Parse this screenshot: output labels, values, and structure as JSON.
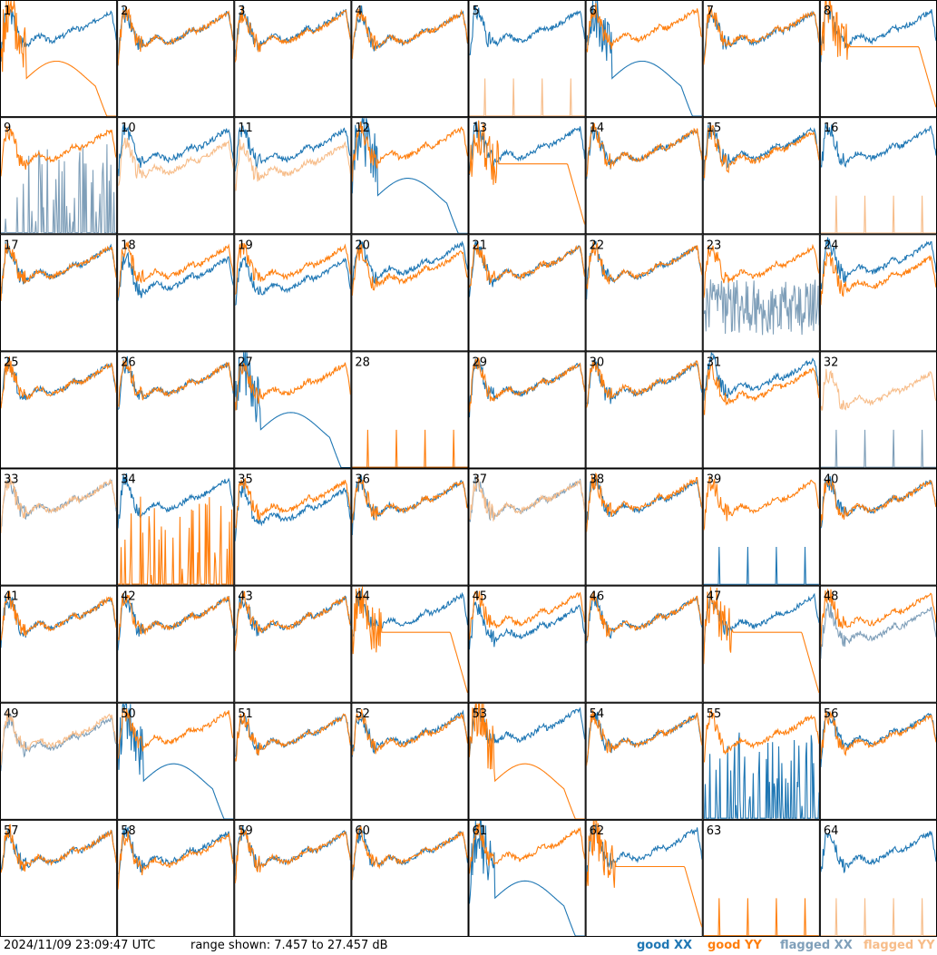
{
  "footer": {
    "timestamp": "2024/11/09 23:09:47 UTC",
    "range_text": "range shown: 7.457 to 27.457 dB",
    "legend": {
      "good_xx": "good XX",
      "good_yy": "good YY",
      "flagged_xx": "flagged XX",
      "flagged_yy": "flagged YY"
    }
  },
  "colors": {
    "good_xx": "#1f77b4",
    "good_yy": "#ff7f0e",
    "flagged_xx": "#7f9fb9",
    "flagged_yy": "#f7bd8a",
    "frame": "#000000"
  },
  "chart_data": {
    "type": "line",
    "layout": "8x8 grid of small multiples, tiles numbered 1-64",
    "ylim_db": [
      7.457,
      27.457
    ],
    "x_axis": "channel (unlabeled)",
    "grid": false,
    "legend_placement": "bottom-right",
    "x": [
      0.0,
      0.04,
      0.08,
      0.12,
      0.16,
      0.2,
      0.24,
      0.28,
      0.32,
      0.36,
      0.4,
      0.44,
      0.48,
      0.52,
      0.56,
      0.6,
      0.64,
      0.68,
      0.72,
      0.76,
      0.8,
      0.84,
      0.88,
      0.92,
      0.96,
      1.0
    ],
    "typical_shape_db": [
      17.5,
      24.8,
      25.3,
      23.1,
      20.6,
      19.9,
      19.7,
      20.5,
      21.2,
      21.0,
      20.4,
      20.2,
      20.5,
      20.9,
      21.3,
      22.1,
      22.6,
      22.1,
      22.5,
      23.0,
      23.4,
      24.0,
      24.6,
      25.0,
      25.4,
      20.5
    ],
    "tiles": [
      {
        "id": "1",
        "xx": "good",
        "yy": "good",
        "yy_mode": "dip_drop",
        "xx_offset": 0.3,
        "yy_offset": 0
      },
      {
        "id": "2",
        "xx": "good",
        "yy": "good",
        "xx_offset": 0,
        "yy_offset": 0
      },
      {
        "id": "3",
        "xx": "good",
        "yy": "good",
        "xx_offset": 0.3,
        "yy_offset": 0
      },
      {
        "id": "4",
        "xx": "good",
        "yy": "good",
        "xx_offset": 0,
        "yy_offset": 0
      },
      {
        "id": "5",
        "xx": "good",
        "yy": "flagged",
        "yy_mode": "dead_spike",
        "xx_offset": 0.3,
        "yy_offset": 0
      },
      {
        "id": "6",
        "xx": "good",
        "yy": "good",
        "xx_mode": "dip_drop",
        "xx_offset": 0,
        "yy_offset": 0.5
      },
      {
        "id": "7",
        "xx": "good",
        "yy": "good",
        "xx_offset": 0,
        "yy_offset": 0.2
      },
      {
        "id": "8",
        "xx": "good",
        "yy": "good",
        "yy_mode": "smooth_drop",
        "xx_offset": 0.3,
        "yy_offset": 0
      },
      {
        "id": "9",
        "xx": "flagged",
        "yy": "good",
        "xx_mode": "spiky_bursts",
        "xx_offset": 0,
        "yy_offset": 0
      },
      {
        "id": "10",
        "xx": "good",
        "yy": "flagged",
        "xx_offset": 0,
        "yy_offset": -2.2
      },
      {
        "id": "11",
        "xx": "good",
        "yy": "flagged",
        "xx_offset": 0,
        "yy_offset": -2.5
      },
      {
        "id": "12",
        "xx": "good",
        "yy": "good",
        "xx_mode": "dip_drop",
        "xx_offset": 0,
        "yy_offset": 0.3
      },
      {
        "id": "13",
        "xx": "good",
        "yy": "good",
        "yy_mode": "smooth_drop",
        "xx_offset": 0.3,
        "yy_offset": 0
      },
      {
        "id": "14",
        "xx": "good",
        "yy": "good",
        "xx_offset": 0,
        "yy_offset": 0
      },
      {
        "id": "15",
        "xx": "good",
        "yy": "good",
        "xx_offset": 0.2,
        "yy_offset": -0.3
      },
      {
        "id": "16",
        "xx": "good",
        "yy": "flagged",
        "yy_mode": "dead_spike",
        "xx_offset": 0.3,
        "yy_offset": 0
      },
      {
        "id": "17",
        "xx": "good",
        "yy": "good",
        "xx_offset": 0,
        "yy_offset": 0
      },
      {
        "id": "18",
        "xx": "good",
        "yy": "good",
        "xx_offset": -2,
        "yy_offset": 0
      },
      {
        "id": "19",
        "xx": "good",
        "yy": "good",
        "xx_offset": -2.3,
        "yy_offset": 0
      },
      {
        "id": "20",
        "xx": "good",
        "yy": "good",
        "xx_offset": 0.6,
        "yy_offset": -0.8
      },
      {
        "id": "21",
        "xx": "good",
        "yy": "good",
        "xx_offset": 0,
        "yy_offset": 0
      },
      {
        "id": "22",
        "xx": "good",
        "yy": "good",
        "xx_offset": 0,
        "yy_offset": 0
      },
      {
        "id": "23",
        "xx": "flagged",
        "yy": "good",
        "xx_mode": "noise_chaos",
        "xx_offset": 0,
        "yy_offset": 0
      },
      {
        "id": "24",
        "xx": "good",
        "yy": "good",
        "xx_offset": 0.8,
        "yy_offset": -1.8
      },
      {
        "id": "25",
        "xx": "good",
        "yy": "good",
        "xx_offset": 0,
        "yy_offset": 0
      },
      {
        "id": "26",
        "xx": "good",
        "yy": "good",
        "xx_offset": 0,
        "yy_offset": 0
      },
      {
        "id": "27",
        "xx": "good",
        "yy": "good",
        "xx_mode": "dip_drop",
        "xx_offset": 0,
        "yy_offset": 0
      },
      {
        "id": "28",
        "xx": "good",
        "yy": "good",
        "xx_mode": "dead_low",
        "yy_mode": "dead_spike",
        "xx_offset": 0,
        "yy_offset": 0
      },
      {
        "id": "29",
        "xx": "good",
        "yy": "good",
        "xx_offset": 0,
        "yy_offset": 0
      },
      {
        "id": "30",
        "xx": "good",
        "yy": "good",
        "xx_offset": 0,
        "yy_offset": 0.2
      },
      {
        "id": "31",
        "xx": "good",
        "yy": "good",
        "xx_offset": 0.8,
        "yy_offset": -0.8
      },
      {
        "id": "32",
        "xx": "flagged",
        "yy": "flagged",
        "xx_mode": "dead_spike",
        "xx_offset": 0,
        "yy_offset": -1.5
      },
      {
        "id": "33",
        "xx": "flagged",
        "yy": "flagged",
        "xx_offset": 0,
        "yy_offset": 0
      },
      {
        "id": "34",
        "xx": "good",
        "yy": "good",
        "yy_mode": "spiky_bursts",
        "xx_offset": 0.3,
        "yy_offset": 0
      },
      {
        "id": "35",
        "xx": "good",
        "yy": "good",
        "xx_offset": -1.5,
        "yy_offset": 0
      },
      {
        "id": "36",
        "xx": "good",
        "yy": "good",
        "xx_offset": 0,
        "yy_offset": 0
      },
      {
        "id": "37",
        "xx": "flagged",
        "yy": "flagged",
        "xx_offset": 0,
        "yy_offset": 0
      },
      {
        "id": "38",
        "xx": "good",
        "yy": "good",
        "xx_offset": 0,
        "yy_offset": 0.3
      },
      {
        "id": "39",
        "xx": "good",
        "yy": "good",
        "xx_mode": "dead_spike",
        "xx_offset": 0,
        "yy_offset": 0
      },
      {
        "id": "40",
        "xx": "good",
        "yy": "good",
        "xx_offset": 0,
        "yy_offset": 0
      },
      {
        "id": "41",
        "xx": "good",
        "yy": "good",
        "xx_offset": 0,
        "yy_offset": 0
      },
      {
        "id": "42",
        "xx": "good",
        "yy": "good",
        "xx_offset": 0,
        "yy_offset": 0
      },
      {
        "id": "43",
        "xx": "good",
        "yy": "good",
        "xx_offset": 0,
        "yy_offset": 0
      },
      {
        "id": "44",
        "xx": "good",
        "yy": "good",
        "yy_mode": "smooth_drop",
        "xx_offset": 0.5,
        "yy_offset": 0
      },
      {
        "id": "45",
        "xx": "good",
        "yy": "good",
        "xx_offset": -1.5,
        "yy_offset": 0.8
      },
      {
        "id": "46",
        "xx": "good",
        "yy": "good",
        "xx_offset": 0,
        "yy_offset": 0
      },
      {
        "id": "47",
        "xx": "good",
        "yy": "good",
        "yy_mode": "smooth_drop",
        "xx_offset": 0.3,
        "yy_offset": 0
      },
      {
        "id": "48",
        "xx": "flagged",
        "yy": "good",
        "xx_offset": -1.8,
        "yy_offset": 0.8
      },
      {
        "id": "49",
        "xx": "flagged",
        "yy": "flagged",
        "xx_offset": -0.5,
        "yy_offset": 0
      },
      {
        "id": "50",
        "xx": "good",
        "yy": "good",
        "xx_mode": "dip_drop",
        "xx_offset": 0,
        "yy_offset": 0.5
      },
      {
        "id": "51",
        "xx": "good",
        "yy": "good",
        "xx_offset": 0,
        "yy_offset": 0
      },
      {
        "id": "52",
        "xx": "good",
        "yy": "good",
        "xx_offset": 0.3,
        "yy_offset": 0
      },
      {
        "id": "53",
        "xx": "good",
        "yy": "good",
        "yy_mode": "dip_drop",
        "xx_offset": 1,
        "yy_offset": 0
      },
      {
        "id": "54",
        "xx": "good",
        "yy": "good",
        "xx_offset": 0,
        "yy_offset": 0
      },
      {
        "id": "55",
        "xx": "good",
        "yy": "good",
        "xx_mode": "spiky_bursts",
        "xx_offset": 0,
        "yy_offset": 0
      },
      {
        "id": "56",
        "xx": "good",
        "yy": "good",
        "xx_offset": 0.3,
        "yy_offset": 0
      },
      {
        "id": "57",
        "xx": "good",
        "yy": "good",
        "xx_offset": 0,
        "yy_offset": 0
      },
      {
        "id": "58",
        "xx": "good",
        "yy": "good",
        "xx_offset": 0,
        "yy_offset": -0.5
      },
      {
        "id": "59",
        "xx": "good",
        "yy": "good",
        "xx_offset": 0,
        "yy_offset": 0
      },
      {
        "id": "60",
        "xx": "good",
        "yy": "good",
        "xx_offset": 0,
        "yy_offset": 0
      },
      {
        "id": "61",
        "xx": "good",
        "yy": "good",
        "xx_mode": "dip_drop",
        "xx_offset": 0,
        "yy_offset": 0.5
      },
      {
        "id": "62",
        "xx": "good",
        "yy": "good",
        "yy_mode": "smooth_drop",
        "xx_offset": 0.5,
        "yy_offset": -2
      },
      {
        "id": "63",
        "xx": "good",
        "yy": "good",
        "xx_mode": "dead_low",
        "yy_mode": "dead_spike",
        "xx_offset": 0,
        "yy_offset": 0
      },
      {
        "id": "64",
        "xx": "good",
        "yy": "flagged",
        "yy_mode": "dead_spike",
        "xx_offset": 0,
        "yy_offset": 0
      }
    ]
  }
}
